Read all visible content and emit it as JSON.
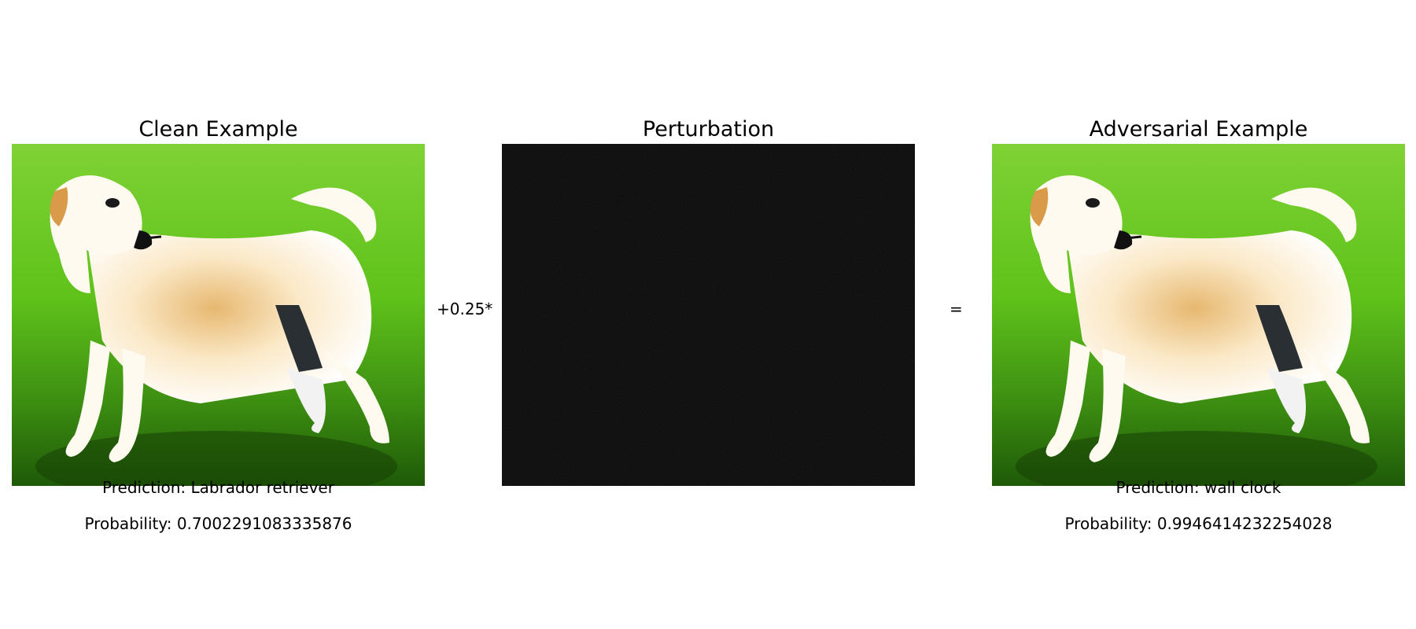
{
  "panels": {
    "clean": {
      "title": "Clean Example",
      "prediction": "Prediction: Labrador retriever",
      "probability": "Probability: 0.7002291083335876"
    },
    "perturbation": {
      "title": "Perturbation"
    },
    "adversarial": {
      "title": "Adversarial Example",
      "prediction": "Prediction: wall clock",
      "probability": "Probability: 0.9946414232254028"
    }
  },
  "operators": {
    "plus": "+0.25*",
    "equals": "="
  },
  "colors": {
    "grass": "#5fc21a",
    "grass_dark": "#1f5a08",
    "dog": "#fff6e6",
    "perturbation_bg": "#070707"
  }
}
